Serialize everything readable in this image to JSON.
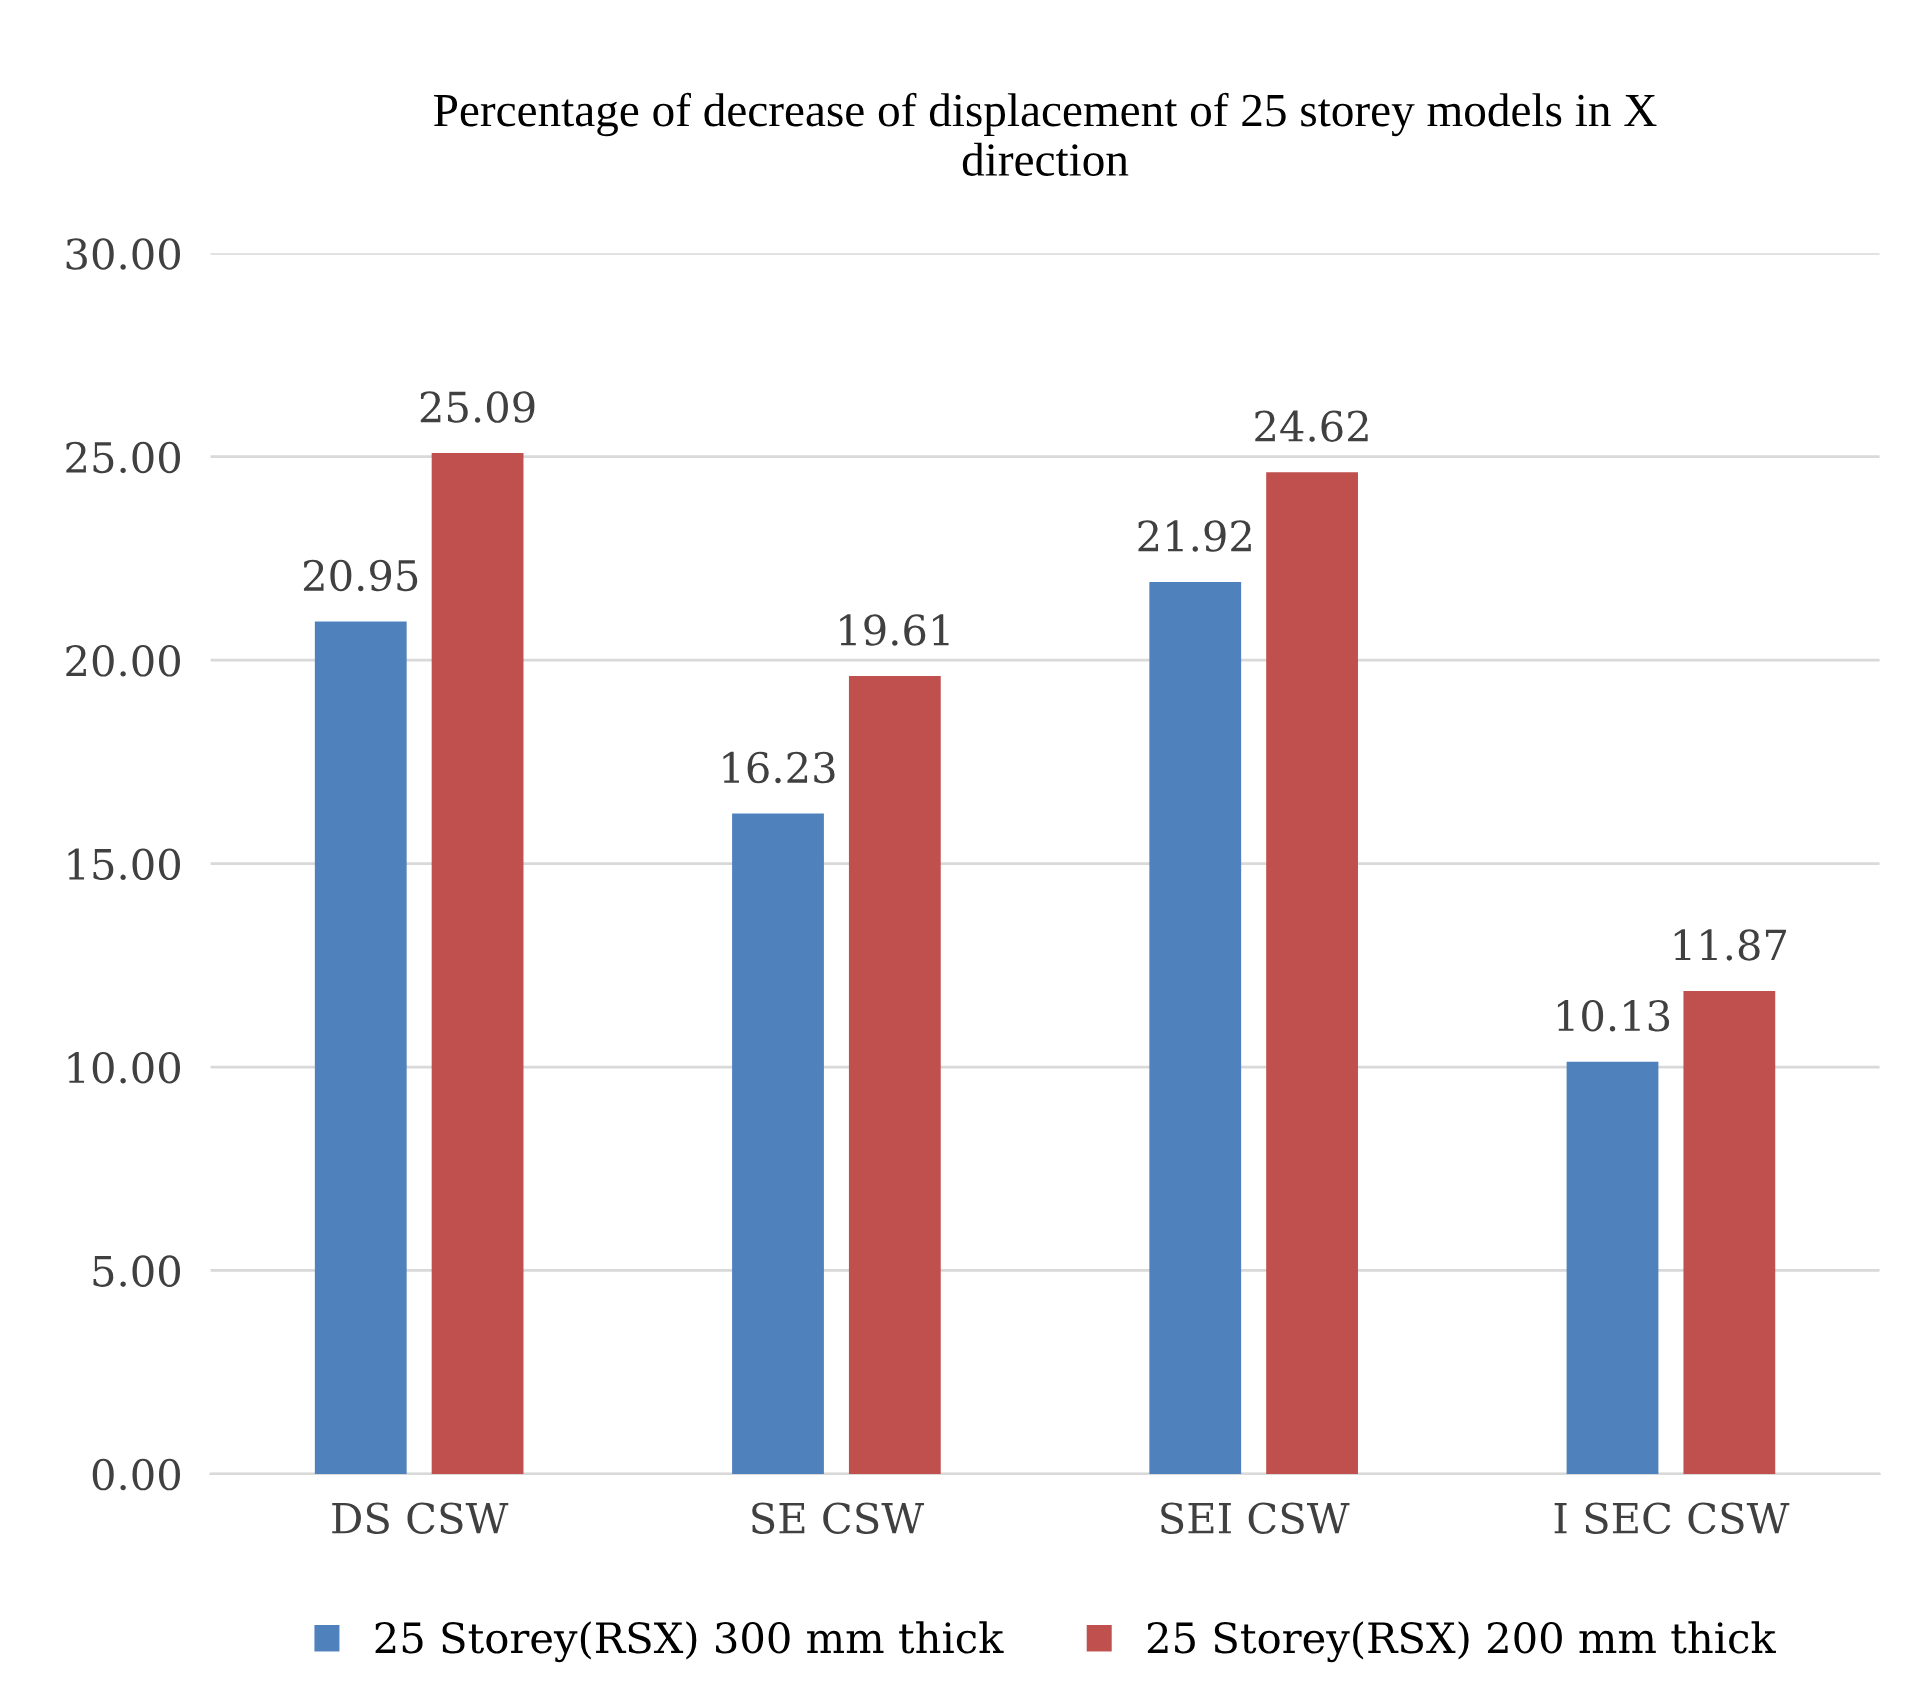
{
  "chart_data": {
    "type": "bar",
    "title": "Percentage of decrease of displacement of 25 storey models in X\ndirection",
    "categories": [
      "DS CSW",
      "SE CSW",
      "SEI CSW",
      "I SEC CSW"
    ],
    "series": [
      {
        "name": "25 Storey(RSX) 300 mm thick",
        "color": "#4f81bd",
        "values": [
          20.95,
          16.23,
          21.92,
          10.13
        ]
      },
      {
        "name": "25 Storey(RSX) 200 mm thick",
        "color": "#c0504d",
        "values": [
          25.09,
          19.61,
          24.62,
          11.87
        ]
      }
    ],
    "ylim": [
      0,
      30
    ],
    "yticks": [
      {
        "value": 0,
        "label": "0.00"
      },
      {
        "value": 5,
        "label": "5.00"
      },
      {
        "value": 10,
        "label": "10.00"
      },
      {
        "value": 15,
        "label": "15.00"
      },
      {
        "value": 20,
        "label": "20.00"
      },
      {
        "value": 25,
        "label": "25.00"
      },
      {
        "value": 30,
        "label": "30.00"
      }
    ],
    "grid": "y",
    "legend": "bottom",
    "data_labels": true
  }
}
